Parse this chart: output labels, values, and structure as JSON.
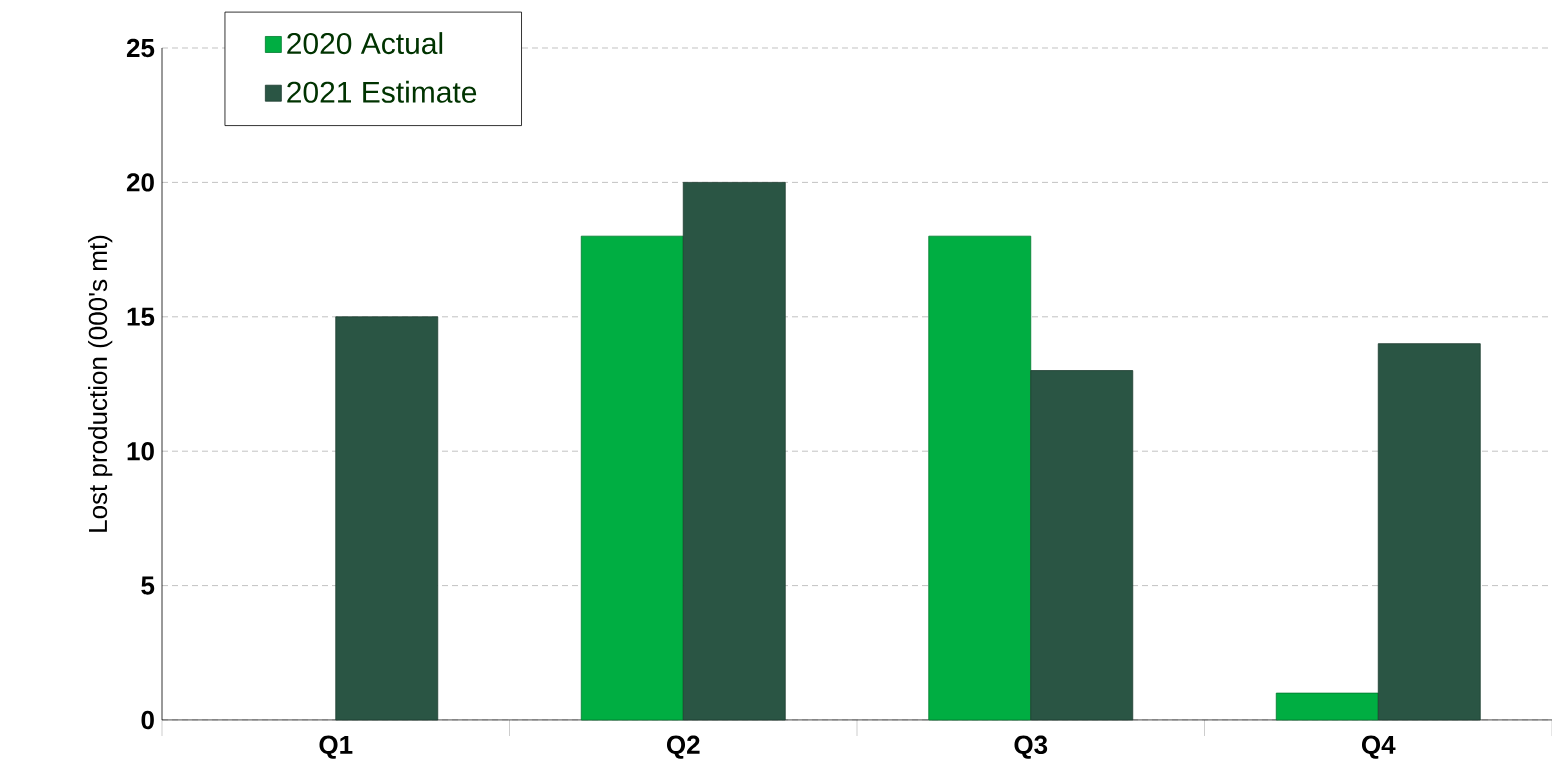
{
  "chart_data": {
    "type": "bar",
    "ylabel": "Lost production (000's mt)",
    "categories": [
      "Q1",
      "Q2",
      "Q3",
      "Q4"
    ],
    "series": [
      {
        "name": "2020 Actual",
        "color": "#00ae42",
        "values": [
          null,
          18,
          18,
          1
        ]
      },
      {
        "name": "2021 Estimate",
        "color": "#2a5544",
        "values": [
          15,
          20,
          13,
          14
        ]
      }
    ],
    "ylim": [
      0,
      25
    ],
    "yticks": [
      0,
      5,
      10,
      15,
      20,
      25
    ],
    "grid": "y",
    "legend": "top left"
  }
}
